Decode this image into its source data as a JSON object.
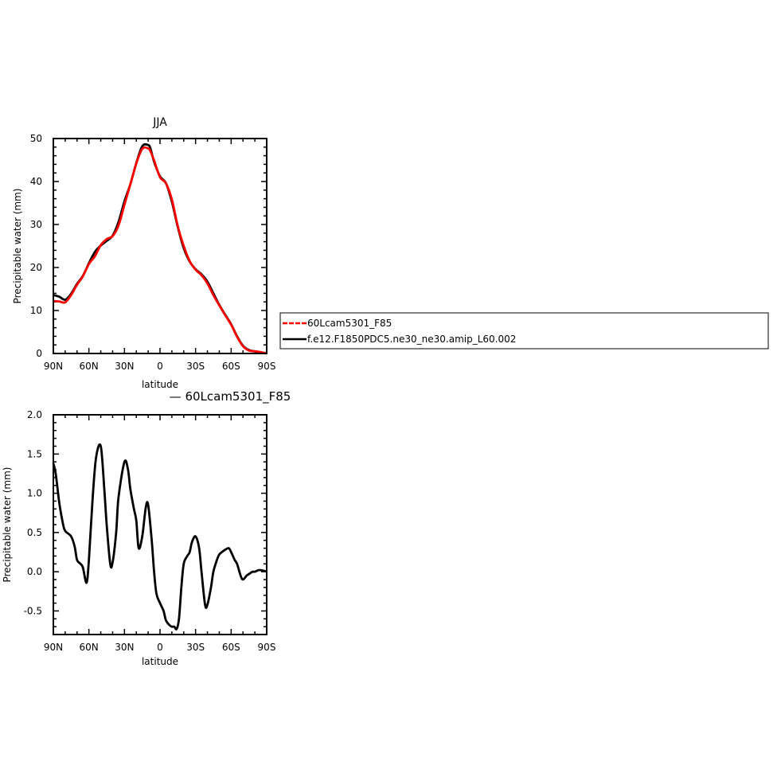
{
  "chart_data": [
    {
      "type": "line",
      "title": "JJA",
      "xlabel": "latitude",
      "ylabel": "Precipitable water (mm)",
      "x_tick_labels": [
        "90N",
        "60N",
        "30N",
        "0",
        "30S",
        "60S",
        "90S"
      ],
      "y_tick_labels": [
        "0",
        "10",
        "20",
        "30",
        "40",
        "50"
      ],
      "xlim": [
        90,
        -90
      ],
      "ylim": [
        0,
        50
      ],
      "x": [
        90,
        85,
        80,
        75,
        70,
        65,
        60,
        55,
        50,
        45,
        40,
        35,
        30,
        25,
        20,
        15,
        10,
        8,
        5,
        0,
        -5,
        -10,
        -15,
        -20,
        -25,
        -30,
        -35,
        -40,
        -45,
        -50,
        -55,
        -60,
        -65,
        -70,
        -75,
        -80,
        -85,
        -90
      ],
      "series": [
        {
          "name": "60Lcam5301_F85",
          "color": "#ff0000",
          "values": [
            12.2,
            12.1,
            11.9,
            13.6,
            16.0,
            18.0,
            20.8,
            22.6,
            25.2,
            26.6,
            27.3,
            29.8,
            34.6,
            39.4,
            44.2,
            47.6,
            47.7,
            47.0,
            44.9,
            41.0,
            39.6,
            35.8,
            29.6,
            25.0,
            21.5,
            19.5,
            18.2,
            16.3,
            13.6,
            11.2,
            8.9,
            6.7,
            3.9,
            1.7,
            0.7,
            0.5,
            0.3,
            0.0
          ]
        },
        {
          "name": "f.e12.F1850PDC5.ne30_ne30.amip_L60.002",
          "color": "#000000",
          "values": [
            13.6,
            13.2,
            12.5,
            13.9,
            16.2,
            18.1,
            21.0,
            23.6,
            25.1,
            26.2,
            27.4,
            30.6,
            35.4,
            39.4,
            44.3,
            48.2,
            48.5,
            47.6,
            44.6,
            41.2,
            39.6,
            35.3,
            29.4,
            24.5,
            21.4,
            19.6,
            18.4,
            16.7,
            14.0,
            11.3,
            9.0,
            6.8,
            4.0,
            1.8,
            0.8,
            0.5,
            0.3,
            0.0
          ]
        }
      ],
      "legend": "right"
    },
    {
      "type": "line",
      "title": "— 60Lcam5301_F85",
      "xlabel": "latitude",
      "ylabel": "Precipitable water (mm)",
      "x_tick_labels": [
        "90N",
        "60N",
        "30N",
        "0",
        "30S",
        "60S",
        "90S"
      ],
      "y_tick_labels": [
        "-0.5",
        "0.0",
        "0.5",
        "1.0",
        "1.5",
        "2.0"
      ],
      "xlim": [
        90,
        -90
      ],
      "ylim": [
        -0.8,
        2.0
      ],
      "x": [
        90,
        88,
        85,
        82,
        80,
        75,
        72,
        70,
        67,
        65,
        62,
        60,
        57,
        54,
        50,
        47,
        45,
        42,
        40,
        37,
        35,
        30,
        27,
        25,
        22,
        20,
        18,
        15,
        12,
        10,
        7,
        5,
        3,
        0,
        -3,
        -5,
        -8,
        -10,
        -12,
        -14,
        -16,
        -18,
        -20,
        -23,
        -25,
        -27,
        -30,
        -33,
        -35,
        -38,
        -40,
        -43,
        -45,
        -48,
        -50,
        -53,
        -55,
        -58,
        -60,
        -63,
        -65,
        -68,
        -70,
        -73,
        -75,
        -78,
        -80,
        -83,
        -85,
        -88,
        -90
      ],
      "series": [
        {
          "name": "",
          "color": "#000000",
          "values": [
            1.38,
            1.25,
            0.88,
            0.62,
            0.52,
            0.45,
            0.32,
            0.15,
            0.1,
            0.05,
            -0.14,
            0.15,
            0.9,
            1.45,
            1.6,
            1.05,
            0.6,
            0.1,
            0.12,
            0.5,
            0.95,
            1.4,
            1.3,
            1.05,
            0.8,
            0.65,
            0.3,
            0.45,
            0.82,
            0.85,
            0.4,
            0.0,
            -0.28,
            -0.4,
            -0.5,
            -0.62,
            -0.68,
            -0.7,
            -0.7,
            -0.73,
            -0.6,
            -0.2,
            0.1,
            0.2,
            0.25,
            0.38,
            0.45,
            0.3,
            0.0,
            -0.42,
            -0.42,
            -0.2,
            0.0,
            0.15,
            0.22,
            0.26,
            0.28,
            0.3,
            0.25,
            0.15,
            0.1,
            -0.05,
            -0.1,
            -0.05,
            -0.03,
            0.0,
            0.0,
            0.02,
            0.02,
            0.01,
            0.0
          ]
        }
      ]
    }
  ]
}
